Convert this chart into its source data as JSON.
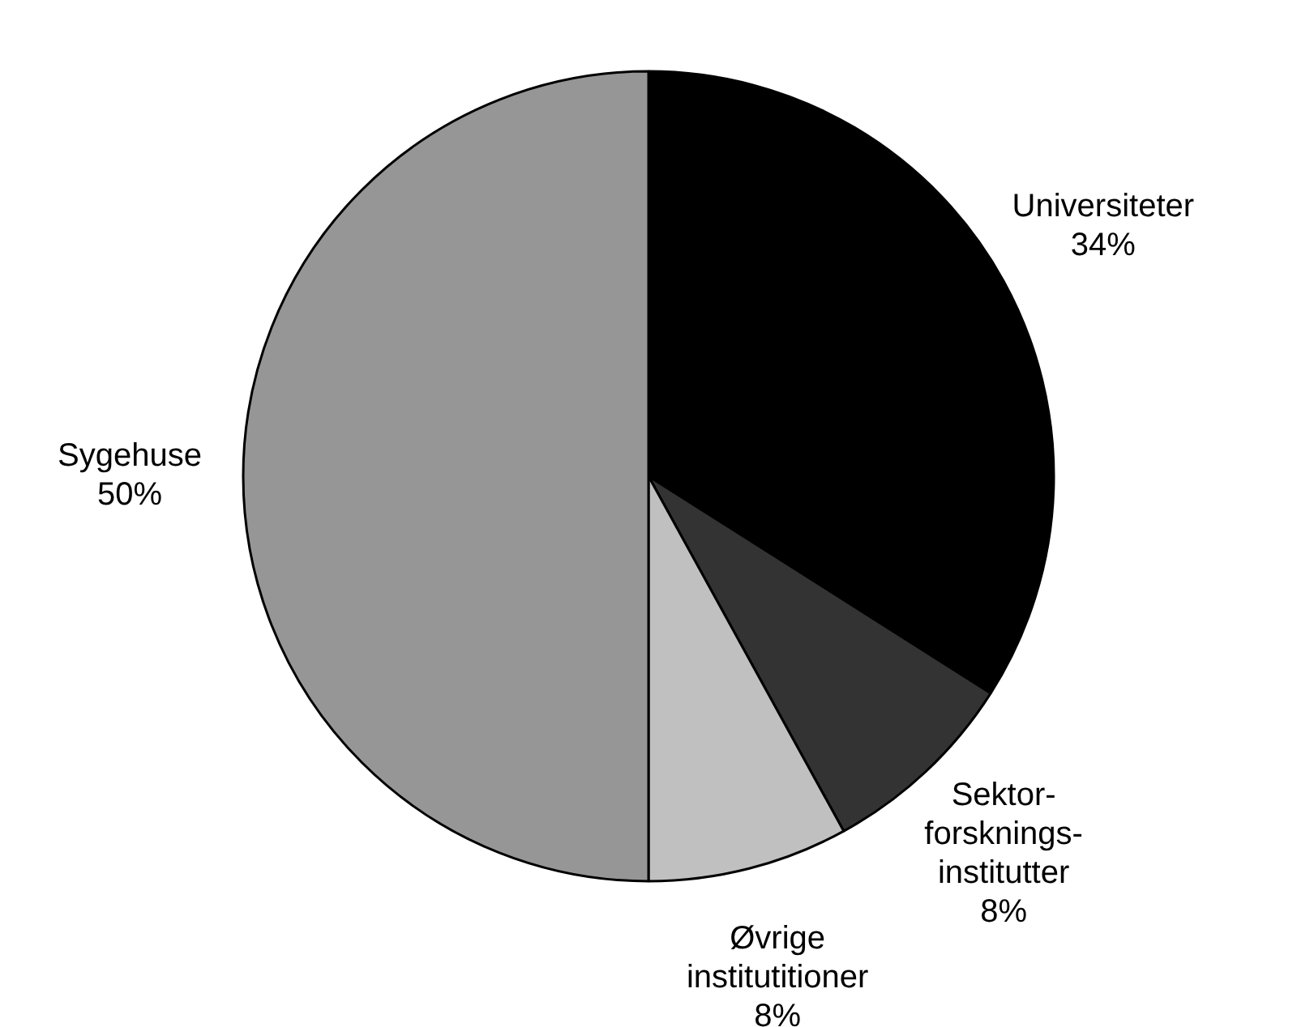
{
  "chart_data": {
    "type": "pie",
    "categories": [
      "Universiteter",
      "Sektor-\nforsknings-\ninstitutter",
      "Øvrige\ninstitutitioner",
      "Sygehuse"
    ],
    "values": [
      34,
      8,
      8,
      50
    ],
    "colors": [
      "#000000",
      "#333333",
      "#c0c0c0",
      "#969696"
    ],
    "value_labels": [
      "34%",
      "8%",
      "8%",
      "50%"
    ],
    "legend": false
  }
}
